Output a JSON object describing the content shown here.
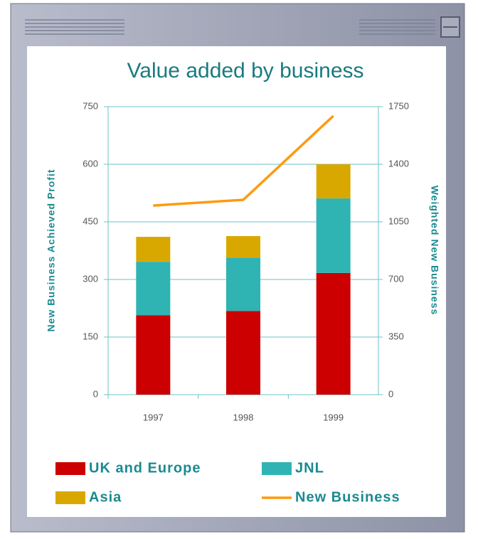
{
  "chart_data": {
    "type": "bar",
    "stacked": true,
    "title": "Value added by business",
    "y_label": "New Business Achieved Profit",
    "y2_label": "Weighted New Business",
    "categories": [
      "1997",
      "1998",
      "1999"
    ],
    "series": [
      {
        "name": "UK and Europe",
        "type": "bar",
        "color": "#cc0000",
        "values": [
          207,
          218,
          317
        ]
      },
      {
        "name": "JNL",
        "type": "bar",
        "color": "#2fb3b3",
        "values": [
          139,
          139,
          194
        ]
      },
      {
        "name": "Asia",
        "type": "bar",
        "color": "#d9a800",
        "values": [
          65,
          56,
          89
        ]
      },
      {
        "name": "New Business",
        "type": "line",
        "axis": "y2",
        "color": "#ff9a10",
        "values": [
          1149,
          1184,
          1694
        ]
      }
    ],
    "ylim": [
      0,
      750
    ],
    "yticks": [
      0,
      150,
      300,
      450,
      600,
      750
    ],
    "y2lim": [
      0,
      1750
    ],
    "y2ticks": [
      0,
      350,
      700,
      1050,
      1400,
      1750
    ],
    "grid": true
  }
}
